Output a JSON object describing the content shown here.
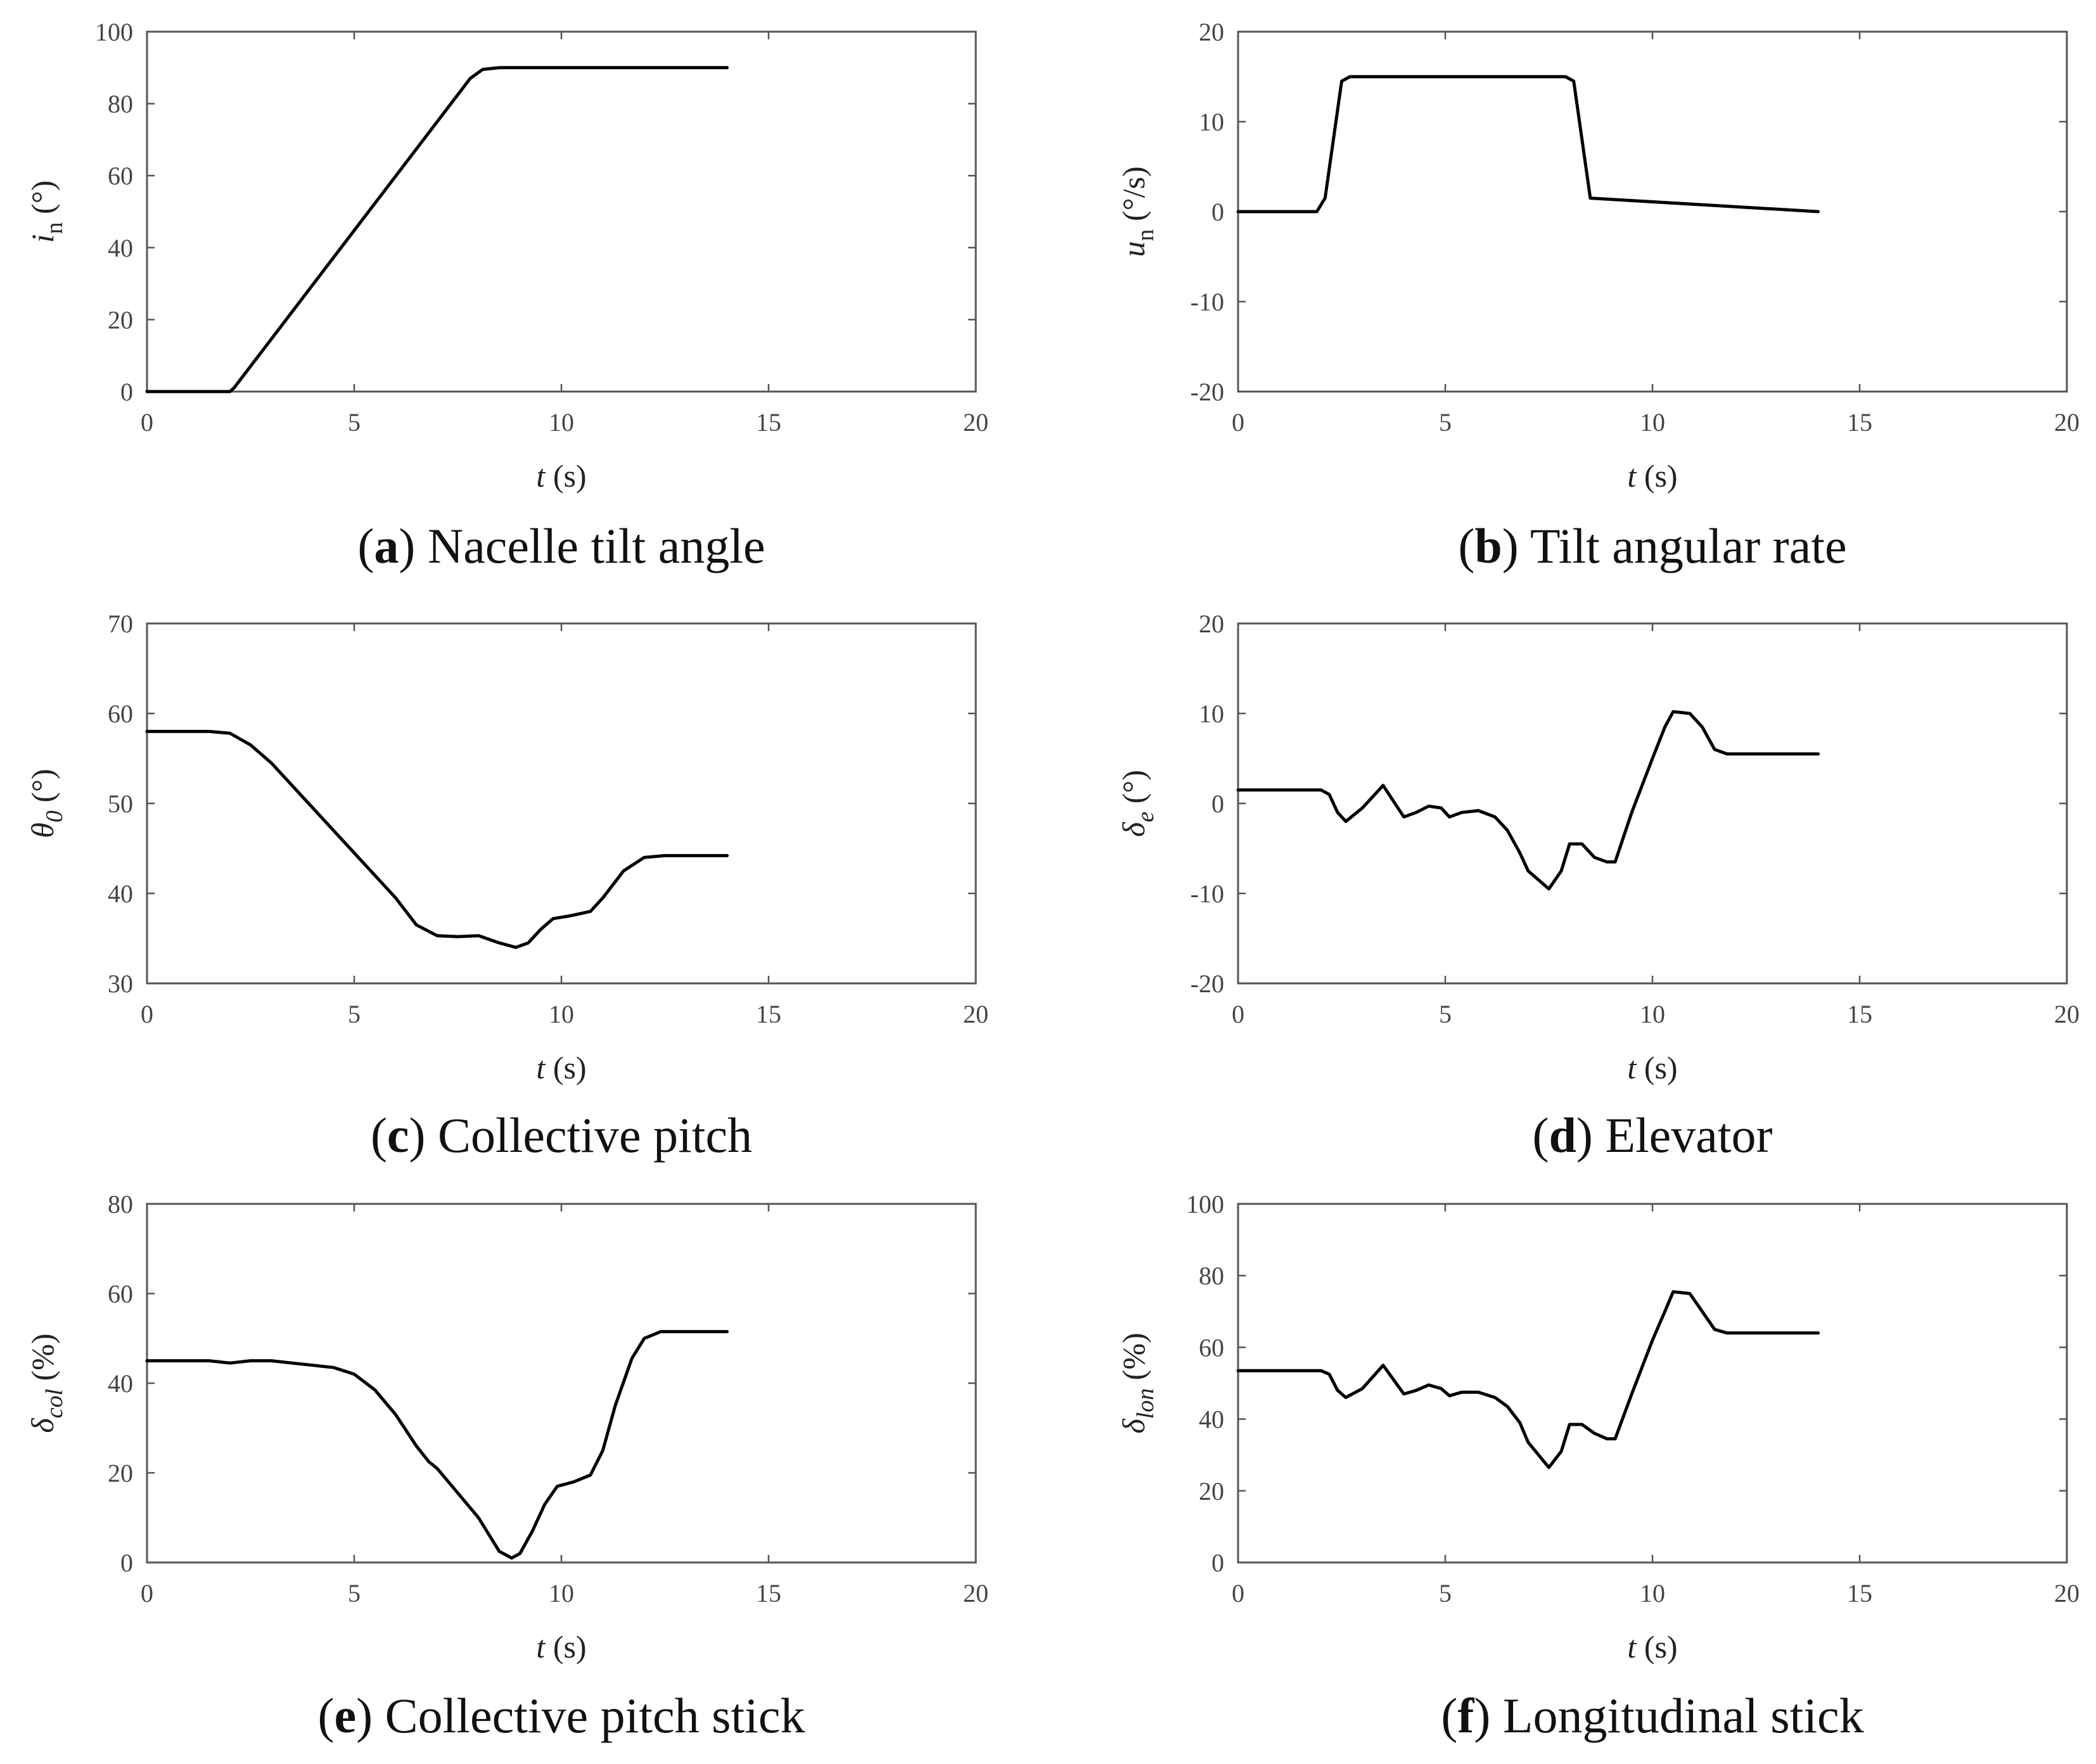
{
  "chart_data": [
    {
      "id": "a",
      "type": "line",
      "caption_letter": "a",
      "caption_text": " Nacelle tilt angle",
      "xlabel_var": "t",
      "xlabel_unit": " (s)",
      "ylabel_var": "i",
      "ylabel_sub": "n",
      "ylabel_unit": " (°)",
      "xlim": [
        0,
        20
      ],
      "ylim": [
        0,
        100
      ],
      "xticks": [
        0,
        5,
        10,
        15,
        20
      ],
      "yticks": [
        0,
        20,
        40,
        60,
        80,
        100
      ],
      "series": [
        {
          "name": "i_n",
          "x": [
            0,
            2,
            2.1,
            7.8,
            8.1,
            8.5,
            14
          ],
          "y": [
            0,
            0,
            1,
            87,
            89.5,
            90,
            90
          ]
        }
      ]
    },
    {
      "id": "b",
      "type": "line",
      "caption_letter": "b",
      "caption_text": " Tilt angular rate",
      "xlabel_var": "t",
      "xlabel_unit": " (s)",
      "ylabel_var": "u",
      "ylabel_sub": "n",
      "ylabel_unit": " (°/s)",
      "xlim": [
        0,
        20
      ],
      "ylim": [
        -20,
        20
      ],
      "xticks": [
        0,
        5,
        10,
        15,
        20
      ],
      "yticks": [
        -20,
        -10,
        0,
        10,
        20
      ],
      "series": [
        {
          "name": "u_n",
          "x": [
            0,
            1.9,
            2.1,
            2.3,
            2.5,
            2.7,
            7.9,
            8.1,
            8.3,
            8.5,
            14
          ],
          "y": [
            0,
            0,
            1.5,
            8,
            14.5,
            15,
            15,
            14.5,
            8,
            1.5,
            0
          ]
        }
      ]
    },
    {
      "id": "c",
      "type": "line",
      "caption_letter": "c",
      "caption_text": " Collective pitch",
      "xlabel_var": "t",
      "xlabel_unit": " (s)",
      "ylabel_var": "θ",
      "ylabel_sub": "0",
      "ylabel_unit": " (°)",
      "xlim": [
        0,
        20
      ],
      "ylim": [
        30,
        70
      ],
      "xticks": [
        0,
        5,
        10,
        15,
        20
      ],
      "yticks": [
        30,
        40,
        50,
        60,
        70
      ],
      "series": [
        {
          "name": "theta_0",
          "x": [
            0,
            1.5,
            2,
            2.5,
            3,
            4,
            5,
            6,
            6.5,
            7,
            7.5,
            8,
            8.5,
            8.9,
            9.2,
            9.5,
            9.8,
            10.2,
            10.7,
            11,
            11.5,
            12,
            12.5,
            14
          ],
          "y": [
            58,
            58,
            57.8,
            56.5,
            54.5,
            49.5,
            44.5,
            39.5,
            36.5,
            35.3,
            35.2,
            35.3,
            34.5,
            34,
            34.5,
            36,
            37.2,
            37.5,
            38,
            39.5,
            42.5,
            44,
            44.2,
            44.2
          ]
        }
      ]
    },
    {
      "id": "d",
      "type": "line",
      "caption_letter": "d",
      "caption_text": " Elevator",
      "xlabel_var": "t",
      "xlabel_unit": " (s)",
      "ylabel_var": "δ",
      "ylabel_sub": "e",
      "ylabel_unit": " (°)",
      "xlim": [
        0,
        20
      ],
      "ylim": [
        -20,
        20
      ],
      "xticks": [
        0,
        5,
        10,
        15,
        20
      ],
      "yticks": [
        -20,
        -10,
        0,
        10,
        20
      ],
      "series": [
        {
          "name": "delta_e",
          "x": [
            0,
            2,
            2.2,
            2.4,
            2.6,
            3,
            3.5,
            4,
            4.3,
            4.6,
            4.9,
            5.1,
            5.4,
            5.8,
            6.2,
            6.5,
            6.8,
            7,
            7.5,
            7.8,
            8,
            8.3,
            8.6,
            8.9,
            9.1,
            9.5,
            10,
            10.3,
            10.5,
            10.9,
            11.2,
            11.5,
            11.8,
            14
          ],
          "y": [
            1.5,
            1.5,
            1,
            -1,
            -2,
            -0.5,
            2,
            -1.5,
            -1,
            -0.3,
            -0.5,
            -1.5,
            -1,
            -0.8,
            -1.5,
            -3,
            -5.5,
            -7.5,
            -9.5,
            -7.5,
            -4.5,
            -4.5,
            -6,
            -6.5,
            -6.5,
            -1,
            5,
            8.5,
            10.2,
            10,
            8.5,
            6,
            5.5,
            5.5
          ]
        }
      ]
    },
    {
      "id": "e",
      "type": "line",
      "caption_letter": "e",
      "caption_text": " Collective pitch stick",
      "xlabel_var": "t",
      "xlabel_unit": " (s)",
      "ylabel_var": "δ",
      "ylabel_sub": "col",
      "ylabel_unit": " (%)",
      "xlim": [
        0,
        20
      ],
      "ylim": [
        0,
        80
      ],
      "xticks": [
        0,
        5,
        10,
        15,
        20
      ],
      "yticks": [
        0,
        20,
        40,
        60,
        80
      ],
      "series": [
        {
          "name": "delta_col",
          "x": [
            0,
            1.5,
            2,
            2.5,
            3,
            3.5,
            4,
            4.5,
            5,
            5.5,
            6,
            6.5,
            6.8,
            7,
            7.5,
            8,
            8.5,
            8.8,
            9,
            9.3,
            9.6,
            9.9,
            10.3,
            10.7,
            11,
            11.3,
            11.7,
            12,
            12.4,
            14
          ],
          "y": [
            45,
            45,
            44.5,
            45,
            45,
            44.5,
            44,
            43.5,
            42,
            38.5,
            33,
            26,
            22.5,
            21,
            15.5,
            10,
            2.5,
            1,
            2,
            7,
            13,
            17,
            18,
            19.5,
            25,
            35,
            45.5,
            50,
            51.5,
            51.5
          ]
        }
      ]
    },
    {
      "id": "f",
      "type": "line",
      "caption_letter": "f",
      "caption_text": " Longitudinal stick",
      "xlabel_var": "t",
      "xlabel_unit": " (s)",
      "ylabel_var": "δ",
      "ylabel_sub": "lon",
      "ylabel_unit": " (%)",
      "xlim": [
        0,
        20
      ],
      "ylim": [
        0,
        100
      ],
      "xticks": [
        0,
        5,
        10,
        15,
        20
      ],
      "yticks": [
        0,
        20,
        40,
        60,
        80,
        100
      ],
      "series": [
        {
          "name": "delta_lon",
          "x": [
            0,
            2,
            2.2,
            2.4,
            2.6,
            3,
            3.5,
            4,
            4.3,
            4.6,
            4.9,
            5.1,
            5.4,
            5.8,
            6.2,
            6.5,
            6.8,
            7,
            7.5,
            7.8,
            8,
            8.3,
            8.6,
            8.9,
            9.1,
            9.5,
            10,
            10.3,
            10.5,
            10.9,
            11.2,
            11.5,
            11.8,
            14
          ],
          "y": [
            53.5,
            53.5,
            52.5,
            48,
            46,
            48.5,
            55,
            47,
            48,
            49.5,
            48.5,
            46.5,
            47.5,
            47.5,
            46,
            43.5,
            39,
            33.5,
            26.5,
            31,
            38.5,
            38.5,
            36,
            34.5,
            34.5,
            47,
            62,
            70,
            75.5,
            75,
            70,
            65,
            64,
            64
          ]
        }
      ]
    }
  ]
}
